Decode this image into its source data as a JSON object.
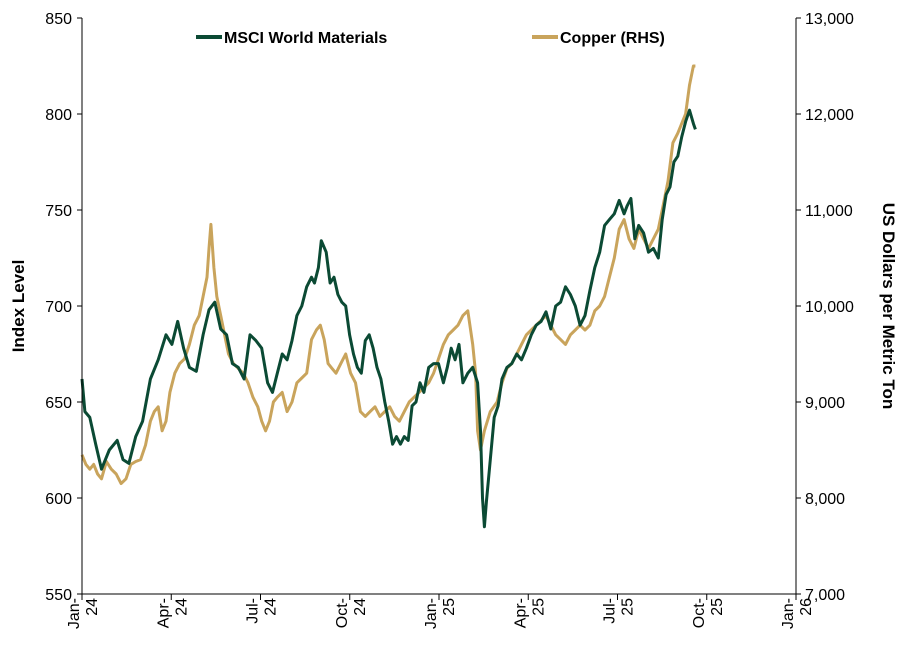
{
  "chart_data": {
    "type": "line",
    "title": "",
    "xlabel": "",
    "ylabel": "Index Level",
    "y2label": "US Dollars per Metric Ton",
    "ylim": [
      550,
      850
    ],
    "y2lim": [
      7000,
      13000
    ],
    "y_ticks": [
      "550",
      "600",
      "650",
      "700",
      "750",
      "800",
      "850"
    ],
    "y2_ticks": [
      "7,000",
      "8,000",
      "9,000",
      "10,000",
      "11,000",
      "12,000",
      "13,000"
    ],
    "x_range": [
      "2024-01-01",
      "2026-01-01"
    ],
    "x_ticks": [
      {
        "month": "Jan-",
        "year": "24"
      },
      {
        "month": "Apr-",
        "year": "24"
      },
      {
        "month": "Jul-",
        "year": "24"
      },
      {
        "month": "Oct-",
        "year": "24"
      },
      {
        "month": "Jan-",
        "year": "25"
      },
      {
        "month": "Apr-",
        "year": "25"
      },
      {
        "month": "Jul-",
        "year": "25"
      },
      {
        "month": "Oct-",
        "year": "25"
      },
      {
        "month": "Jan-",
        "year": "26"
      }
    ],
    "legend": "top",
    "grid": false,
    "series": [
      {
        "name": "MSCI World Materials",
        "axis": "left",
        "color": "#0b4a34",
        "points": [
          [
            0,
            662
          ],
          [
            3,
            645
          ],
          [
            8,
            642
          ],
          [
            14,
            628
          ],
          [
            20,
            615
          ],
          [
            28,
            625
          ],
          [
            36,
            630
          ],
          [
            42,
            620
          ],
          [
            48,
            618
          ],
          [
            55,
            632
          ],
          [
            62,
            640
          ],
          [
            70,
            662
          ],
          [
            78,
            672
          ],
          [
            86,
            685
          ],
          [
            92,
            680
          ],
          [
            98,
            692
          ],
          [
            104,
            678
          ],
          [
            110,
            668
          ],
          [
            117,
            666
          ],
          [
            124,
            685
          ],
          [
            130,
            698
          ],
          [
            136,
            702
          ],
          [
            142,
            688
          ],
          [
            148,
            685
          ],
          [
            154,
            670
          ],
          [
            160,
            668
          ],
          [
            166,
            662
          ],
          [
            172,
            685
          ],
          [
            178,
            682
          ],
          [
            184,
            678
          ],
          [
            190,
            660
          ],
          [
            195,
            655
          ],
          [
            200,
            665
          ],
          [
            205,
            675
          ],
          [
            210,
            672
          ],
          [
            215,
            682
          ],
          [
            220,
            695
          ],
          [
            225,
            700
          ],
          [
            230,
            710
          ],
          [
            235,
            715
          ],
          [
            238,
            712
          ],
          [
            242,
            720
          ],
          [
            245,
            734
          ],
          [
            250,
            728
          ],
          [
            254,
            712
          ],
          [
            258,
            715
          ],
          [
            262,
            706
          ],
          [
            266,
            702
          ],
          [
            270,
            700
          ],
          [
            274,
            685
          ],
          [
            278,
            675
          ],
          [
            282,
            668
          ],
          [
            286,
            665
          ],
          [
            290,
            682
          ],
          [
            294,
            685
          ],
          [
            298,
            678
          ],
          [
            302,
            668
          ],
          [
            306,
            662
          ],
          [
            310,
            650
          ],
          [
            314,
            640
          ],
          [
            318,
            628
          ],
          [
            322,
            632
          ],
          [
            326,
            628
          ],
          [
            330,
            632
          ],
          [
            334,
            630
          ],
          [
            338,
            648
          ],
          [
            342,
            650
          ],
          [
            346,
            660
          ],
          [
            350,
            655
          ],
          [
            355,
            668
          ],
          [
            360,
            670
          ],
          [
            365,
            670
          ],
          [
            370,
            660
          ],
          [
            374,
            668
          ],
          [
            378,
            678
          ],
          [
            382,
            672
          ],
          [
            386,
            680
          ],
          [
            390,
            660
          ],
          [
            395,
            665
          ],
          [
            400,
            668
          ],
          [
            405,
            660
          ],
          [
            408,
            635
          ],
          [
            410,
            600
          ],
          [
            412,
            585
          ],
          [
            414,
            598
          ],
          [
            418,
            620
          ],
          [
            422,
            642
          ],
          [
            426,
            648
          ],
          [
            430,
            662
          ],
          [
            435,
            668
          ],
          [
            440,
            670
          ],
          [
            445,
            675
          ],
          [
            450,
            672
          ],
          [
            455,
            678
          ],
          [
            460,
            685
          ],
          [
            465,
            690
          ],
          [
            470,
            692
          ],
          [
            475,
            697
          ],
          [
            480,
            688
          ],
          [
            485,
            700
          ],
          [
            490,
            702
          ],
          [
            495,
            710
          ],
          [
            500,
            706
          ],
          [
            505,
            700
          ],
          [
            510,
            690
          ],
          [
            515,
            695
          ],
          [
            520,
            708
          ],
          [
            525,
            720
          ],
          [
            530,
            728
          ],
          [
            535,
            742
          ],
          [
            540,
            745
          ],
          [
            545,
            748
          ],
          [
            550,
            755
          ],
          [
            555,
            748
          ],
          [
            558,
            752
          ],
          [
            562,
            756
          ],
          [
            566,
            735
          ],
          [
            570,
            742
          ],
          [
            575,
            738
          ],
          [
            580,
            728
          ],
          [
            585,
            730
          ],
          [
            590,
            725
          ],
          [
            594,
            745
          ],
          [
            598,
            758
          ],
          [
            602,
            762
          ],
          [
            606,
            775
          ],
          [
            610,
            778
          ],
          [
            614,
            788
          ],
          [
            618,
            796
          ],
          [
            622,
            802
          ],
          [
            626,
            795
          ],
          [
            628,
            792
          ]
        ]
      },
      {
        "name": "Copper (RHS)",
        "axis": "right",
        "color": "#c9a45c",
        "points": [
          [
            0,
            8450
          ],
          [
            4,
            8350
          ],
          [
            8,
            8300
          ],
          [
            12,
            8350
          ],
          [
            16,
            8250
          ],
          [
            20,
            8200
          ],
          [
            25,
            8380
          ],
          [
            30,
            8300
          ],
          [
            35,
            8250
          ],
          [
            40,
            8150
          ],
          [
            45,
            8200
          ],
          [
            50,
            8350
          ],
          [
            55,
            8380
          ],
          [
            60,
            8400
          ],
          [
            65,
            8550
          ],
          [
            70,
            8800
          ],
          [
            74,
            8900
          ],
          [
            78,
            8950
          ],
          [
            82,
            8700
          ],
          [
            86,
            8800
          ],
          [
            90,
            9100
          ],
          [
            95,
            9300
          ],
          [
            100,
            9400
          ],
          [
            105,
            9450
          ],
          [
            110,
            9600
          ],
          [
            115,
            9800
          ],
          [
            120,
            9900
          ],
          [
            124,
            10100
          ],
          [
            128,
            10300
          ],
          [
            130,
            10600
          ],
          [
            132,
            10850
          ],
          [
            135,
            10400
          ],
          [
            138,
            10100
          ],
          [
            142,
            9900
          ],
          [
            146,
            9700
          ],
          [
            150,
            9500
          ],
          [
            155,
            9400
          ],
          [
            160,
            9350
          ],
          [
            165,
            9300
          ],
          [
            170,
            9200
          ],
          [
            175,
            9050
          ],
          [
            180,
            8950
          ],
          [
            184,
            8800
          ],
          [
            188,
            8700
          ],
          [
            192,
            8800
          ],
          [
            196,
            9000
          ],
          [
            200,
            9050
          ],
          [
            205,
            9100
          ],
          [
            210,
            8900
          ],
          [
            215,
            9000
          ],
          [
            220,
            9200
          ],
          [
            225,
            9250
          ],
          [
            230,
            9300
          ],
          [
            235,
            9650
          ],
          [
            240,
            9750
          ],
          [
            244,
            9800
          ],
          [
            248,
            9650
          ],
          [
            252,
            9400
          ],
          [
            256,
            9350
          ],
          [
            260,
            9300
          ],
          [
            265,
            9400
          ],
          [
            270,
            9500
          ],
          [
            275,
            9300
          ],
          [
            280,
            9200
          ],
          [
            285,
            8900
          ],
          [
            290,
            8850
          ],
          [
            295,
            8900
          ],
          [
            300,
            8950
          ],
          [
            305,
            8850
          ],
          [
            310,
            8900
          ],
          [
            315,
            8950
          ],
          [
            320,
            8850
          ],
          [
            325,
            8800
          ],
          [
            330,
            8900
          ],
          [
            335,
            9000
          ],
          [
            340,
            9050
          ],
          [
            345,
            9100
          ],
          [
            350,
            9150
          ],
          [
            355,
            9200
          ],
          [
            360,
            9300
          ],
          [
            365,
            9450
          ],
          [
            370,
            9600
          ],
          [
            375,
            9700
          ],
          [
            380,
            9750
          ],
          [
            385,
            9800
          ],
          [
            390,
            9900
          ],
          [
            395,
            9950
          ],
          [
            400,
            9600
          ],
          [
            403,
            9300
          ],
          [
            405,
            8700
          ],
          [
            408,
            8500
          ],
          [
            412,
            8700
          ],
          [
            418,
            8900
          ],
          [
            425,
            9000
          ],
          [
            430,
            9200
          ],
          [
            435,
            9350
          ],
          [
            440,
            9400
          ],
          [
            445,
            9500
          ],
          [
            450,
            9600
          ],
          [
            455,
            9700
          ],
          [
            460,
            9750
          ],
          [
            465,
            9800
          ],
          [
            470,
            9850
          ],
          [
            475,
            9900
          ],
          [
            480,
            9800
          ],
          [
            485,
            9700
          ],
          [
            490,
            9650
          ],
          [
            495,
            9600
          ],
          [
            500,
            9700
          ],
          [
            505,
            9750
          ],
          [
            510,
            9800
          ],
          [
            515,
            9750
          ],
          [
            520,
            9800
          ],
          [
            525,
            9950
          ],
          [
            530,
            10000
          ],
          [
            535,
            10100
          ],
          [
            540,
            10300
          ],
          [
            545,
            10500
          ],
          [
            550,
            10800
          ],
          [
            555,
            10900
          ],
          [
            560,
            10700
          ],
          [
            565,
            10600
          ],
          [
            570,
            10800
          ],
          [
            575,
            10700
          ],
          [
            580,
            10600
          ],
          [
            585,
            10700
          ],
          [
            590,
            10800
          ],
          [
            595,
            11050
          ],
          [
            600,
            11300
          ],
          [
            605,
            11700
          ],
          [
            610,
            11800
          ],
          [
            614,
            11900
          ],
          [
            618,
            12000
          ],
          [
            622,
            12300
          ],
          [
            626,
            12500
          ],
          [
            628,
            12500
          ]
        ]
      }
    ]
  }
}
